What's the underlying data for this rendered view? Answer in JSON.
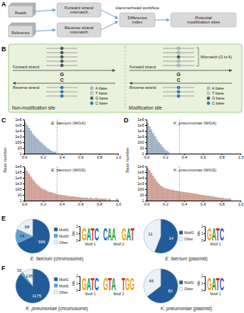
{
  "panel_labels": [
    "A",
    "B",
    "C",
    "D",
    "E",
    "F"
  ],
  "diagram": {
    "workflow": {
      "title": "Hammerhead workflow",
      "inputs": [
        "Reads",
        "Reference"
      ],
      "steps": [
        "Forward strand mismatch",
        "Reverse strand mismatch",
        "Difference index",
        "Potential modification sites"
      ]
    },
    "panel_b": {
      "forward_label": "Forward strand",
      "reverse_label": "Reverse strand",
      "mismatch_label": "Mismatch (G to A)",
      "forward_base": "G",
      "reverse_base": "C",
      "legend": [
        {
          "base": "A",
          "label": "A base",
          "color": "#9ec5e0"
        },
        {
          "base": "T",
          "label": "T base",
          "color": "#cfcfcf"
        },
        {
          "base": "G",
          "label": "G base",
          "color": "#4a5a6a"
        },
        {
          "base": "C",
          "label": "C base",
          "color": "#2f7fc0"
        }
      ],
      "sites": [
        {
          "title": "Non-modification site",
          "forward_reads": [
            "G",
            "G",
            "G",
            "G",
            "G"
          ],
          "reverse_reads": [
            "C",
            "C",
            "C"
          ]
        },
        {
          "title": "Modification site",
          "forward_reads": [
            "A",
            "A",
            "G",
            "A",
            "A"
          ],
          "reverse_reads": [
            "C",
            "C",
            "C"
          ]
        }
      ]
    }
  },
  "chart_data": [
    {
      "type": "histogram",
      "title": "E. faecium (WGA)",
      "y_label": "Base number",
      "color": "#a7b9cc",
      "log": "y",
      "xlim": [
        0,
        1
      ],
      "ylim": [
        1,
        1000000
      ],
      "xticks": [
        {
          "value": 0,
          "label": "0.0"
        },
        0.2,
        0.4,
        0.6,
        0.8,
        {
          "value": 1,
          "label": "1.0"
        }
      ],
      "yticks": [
        1,
        10,
        100,
        {
          "value": 1000,
          "label": "1e3"
        },
        {
          "value": 10000,
          "label": "1e4"
        },
        {
          "value": 100000,
          "label": "1e5"
        },
        {
          "value": 1000000,
          "label": "1e6"
        }
      ],
      "reference_line": 0.35,
      "bins": [
        0,
        0.02,
        0.04,
        0.06,
        0.08,
        0.1,
        0.12,
        0.14,
        0.16,
        0.18,
        0.2,
        0.22,
        0.24,
        0.26,
        0.28,
        0.3,
        0.32,
        0.34,
        0.36,
        0.38,
        0.4,
        0.42,
        0.44,
        0.46,
        0.48,
        0.5,
        0.52,
        0.54,
        0.56,
        0.58,
        0.6,
        0.62,
        0.64,
        0.66,
        0.68,
        0.7,
        0.72,
        0.74,
        0.76,
        0.78,
        0.8,
        0.82,
        0.84,
        0.86,
        0.88,
        0.9,
        0.92,
        0.94,
        0.96,
        0.98,
        1
      ],
      "values": [
        300000,
        100000,
        30000,
        10000,
        3000,
        1200,
        500,
        250,
        120,
        60,
        30,
        15,
        8,
        5,
        3,
        2,
        2,
        1,
        1,
        null,
        1,
        null,
        1,
        null,
        null,
        null,
        1,
        null,
        null,
        null,
        null,
        null,
        null,
        null,
        null,
        null,
        null,
        null,
        null,
        null,
        null,
        null,
        null,
        null,
        null,
        null,
        null,
        null,
        null,
        null
      ]
    },
    {
      "type": "histogram",
      "title": "E. faecium (WGS)",
      "color": "#d8a79d",
      "log": "y",
      "xlim": [
        0,
        1
      ],
      "ylim": [
        1,
        1000000
      ],
      "xticks": [
        {
          "value": 0,
          "label": "0.0"
        },
        0.2,
        0.4,
        0.6,
        0.8,
        {
          "value": 1,
          "label": "1.0"
        }
      ],
      "yticks": [
        1,
        10,
        100,
        {
          "value": 1000,
          "label": "1e3"
        },
        {
          "value": 10000,
          "label": "1e4"
        },
        {
          "value": 100000,
          "label": "1e5"
        },
        {
          "value": 1000000,
          "label": "1e6"
        }
      ],
      "reference_line": 0.35,
      "bins": [
        0,
        0.02,
        0.04,
        0.06,
        0.08,
        0.1,
        0.12,
        0.14,
        0.16,
        0.18,
        0.2,
        0.22,
        0.24,
        0.26,
        0.28,
        0.3,
        0.32,
        0.34,
        0.36,
        0.38,
        0.4,
        0.42,
        0.44,
        0.46,
        0.48,
        0.5,
        0.52,
        0.54,
        0.56,
        0.58,
        0.6,
        0.62,
        0.64,
        0.66,
        0.68,
        0.7,
        0.72,
        0.74,
        0.76,
        0.78,
        0.8,
        0.82,
        0.84,
        0.86,
        0.88,
        0.9,
        0.92,
        0.94,
        0.96,
        0.98,
        1
      ],
      "values": [
        500000,
        150000,
        50000,
        15000,
        5000,
        2000,
        800,
        400,
        200,
        120,
        80,
        60,
        40,
        30,
        25,
        20,
        15,
        12,
        10,
        10,
        8,
        8,
        6,
        6,
        5,
        5,
        5,
        4,
        4,
        4,
        3,
        3,
        3,
        3,
        2,
        3,
        2,
        2,
        3,
        2,
        2,
        2,
        2,
        2,
        1,
        2,
        1,
        1,
        1,
        2
      ]
    },
    {
      "type": "histogram",
      "title": "K. pneumoniae (WGA)",
      "y_label": "Base number",
      "color": "#a7b9cc",
      "log": "y",
      "xlim": [
        0,
        1
      ],
      "ylim": [
        1,
        1000000
      ],
      "xticks": [
        {
          "value": 0,
          "label": "0.0"
        },
        0.2,
        0.4,
        0.6,
        0.8,
        {
          "value": 1,
          "label": "1.0"
        }
      ],
      "yticks": [
        1,
        10,
        100,
        {
          "value": 1000,
          "label": "1e3"
        },
        {
          "value": 10000,
          "label": "1e4"
        },
        {
          "value": 100000,
          "label": "1e5"
        },
        {
          "value": 1000000,
          "label": "1e6"
        }
      ],
      "reference_line": 0.35,
      "bins": [
        0,
        0.02,
        0.04,
        0.06,
        0.08,
        0.1,
        0.12,
        0.14,
        0.16,
        0.18,
        0.2,
        0.22,
        0.24,
        0.26,
        0.28,
        0.3,
        0.32,
        0.34,
        0.36,
        0.38,
        0.4,
        0.42,
        0.44,
        0.46,
        0.48,
        0.5,
        0.52,
        0.54,
        0.56,
        0.58,
        0.6,
        0.62,
        0.64,
        0.66,
        0.68,
        0.7,
        0.72,
        0.74,
        0.76,
        0.78,
        0.8,
        0.82,
        0.84,
        0.86,
        0.88,
        0.9,
        0.92,
        0.94,
        0.96,
        0.98,
        1
      ],
      "values": [
        200000,
        60000,
        15000,
        4000,
        1000,
        300,
        100,
        40,
        15,
        6,
        3,
        2,
        1,
        1,
        null,
        1,
        null,
        null,
        null,
        null,
        null,
        null,
        null,
        null,
        null,
        null,
        null,
        null,
        null,
        null,
        null,
        null,
        null,
        null,
        null,
        null,
        null,
        null,
        null,
        null,
        null,
        null,
        null,
        null,
        null,
        null,
        null,
        null,
        null,
        null
      ]
    },
    {
      "type": "histogram",
      "title": "K. pneumoniae (WGS)",
      "color": "#d8a79d",
      "log": "y",
      "xlim": [
        0,
        1
      ],
      "ylim": [
        1,
        1000000
      ],
      "xticks": [
        {
          "value": 0,
          "label": "0.0"
        },
        0.2,
        0.4,
        0.6,
        0.8,
        {
          "value": 1,
          "label": "1.0"
        }
      ],
      "yticks": [
        1,
        10,
        100,
        {
          "value": 1000,
          "label": "1e3"
        },
        {
          "value": 10000,
          "label": "1e4"
        },
        {
          "value": 100000,
          "label": "1e5"
        },
        {
          "value": 1000000,
          "label": "1e6"
        }
      ],
      "reference_line": 0.35,
      "bins": [
        0,
        0.02,
        0.04,
        0.06,
        0.08,
        0.1,
        0.12,
        0.14,
        0.16,
        0.18,
        0.2,
        0.22,
        0.24,
        0.26,
        0.28,
        0.3,
        0.32,
        0.34,
        0.36,
        0.38,
        0.4,
        0.42,
        0.44,
        0.46,
        0.48,
        0.5,
        0.52,
        0.54,
        0.56,
        0.58,
        0.6,
        0.62,
        0.64,
        0.66,
        0.68,
        0.7,
        0.72,
        0.74,
        0.76,
        0.78,
        0.8,
        0.82,
        0.84,
        0.86,
        0.88,
        0.9,
        0.92,
        0.94,
        0.96,
        0.98,
        1
      ],
      "values": [
        500000,
        200000,
        60000,
        20000,
        6000,
        2000,
        800,
        400,
        250,
        150,
        120,
        100,
        80,
        70,
        60,
        50,
        45,
        40,
        35,
        30,
        28,
        25,
        22,
        20,
        18,
        15,
        14,
        12,
        10,
        9,
        8,
        7,
        6,
        6,
        5,
        5,
        4,
        4,
        3,
        3,
        3,
        2,
        2,
        2,
        2,
        1,
        1,
        1,
        1,
        1
      ]
    },
    {
      "type": "pie",
      "title": "E. faecium (chromosome)",
      "categories": [
        "Motif1",
        "Motif2",
        "Other"
      ],
      "values": [
        366,
        74,
        98
      ],
      "colors": [
        "#1f5c99",
        "#5fa0d6",
        "#eaf1f8"
      ],
      "data_labels": true,
      "legend": "right"
    },
    {
      "type": "pie",
      "title": "E. faecium (plasmid)",
      "categories": [
        "Motif1",
        "Other"
      ],
      "values": [
        14,
        11
      ],
      "colors": [
        "#1f5c99",
        "#eaf1f8"
      ],
      "data_labels": true,
      "legend": "right"
    },
    {
      "type": "pie",
      "title": "K. pneumoniae (chromosome)",
      "categories": [
        "Motif1",
        "Motif2",
        "Other"
      ],
      "values": [
        1175,
        32,
        135
      ],
      "colors": [
        "#1f5c99",
        "#5fa0d6",
        "#eaf1f8"
      ],
      "data_labels": true,
      "legend": "right"
    },
    {
      "type": "pie",
      "title": "K. pneumoniae (plasmid)",
      "categories": [
        "Motif1",
        "Other"
      ],
      "values": [
        82,
        45
      ],
      "colors": [
        "#1f5c99",
        "#eaf1f8"
      ],
      "data_labels": true,
      "legend": "right"
    }
  ],
  "motif_logos": [
    {
      "y_label": "bits",
      "ylim": [
        0,
        2
      ],
      "yticks": [
        0,
        1,
        2
      ],
      "motifs": [
        {
          "label": "Motif 1",
          "letters": [
            "GATC"
          ]
        },
        {
          "label": "Motif 2",
          "letters": [
            "CAA",
            "GAT"
          ]
        }
      ]
    },
    {
      "y_label": "bits",
      "ylim": [
        0,
        2
      ],
      "yticks": [
        0,
        1,
        2
      ],
      "motifs": [
        {
          "label": "Motif 1",
          "letters": [
            "GATC"
          ]
        }
      ]
    },
    {
      "y_label": "bits",
      "ylim": [
        0,
        2
      ],
      "yticks": [
        0,
        1,
        2
      ],
      "motifs": [
        {
          "label": "Motif 1",
          "letters": [
            "GATC"
          ]
        },
        {
          "label": "Motif 2",
          "letters": [
            "GTA",
            "TGG"
          ]
        }
      ]
    },
    {
      "y_label": "bits",
      "ylim": [
        0,
        2
      ],
      "yticks": [
        0,
        1,
        2
      ],
      "motifs": [
        {
          "label": "Motif 1",
          "letters": [
            "GATC"
          ]
        }
      ]
    }
  ]
}
